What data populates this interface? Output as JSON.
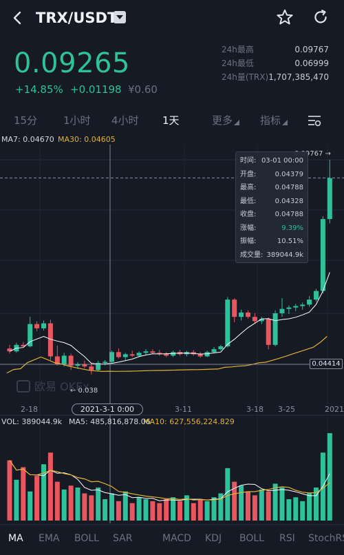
{
  "header": {
    "pair": "TRX/USDT"
  },
  "icons": {
    "back": "chevron-left-icon",
    "dropdown": "caret-down-icon",
    "favorite": "star-icon",
    "refresh": "refresh-icon",
    "settings": "chart-settings-icon"
  },
  "ticker": {
    "last_price": "0.09265",
    "change_pct": "+14.85%",
    "change_abs": "+0.01198",
    "fiat": "¥0.60",
    "high_label": "24h最高",
    "high_value": "0.09767",
    "low_label": "24h最低",
    "low_value": "0.06999",
    "volume_label": "24h量(TRX)",
    "volume_value": "1,707,385,470"
  },
  "timeframes": {
    "t15m": "15分",
    "t1h": "1小时",
    "t4h": "4小时",
    "t1d": "1天",
    "more": "更多",
    "indicators": "指标"
  },
  "ma_legend": {
    "ma7": "MA7: 0.04670",
    "ma30": "MA30: 0.04605"
  },
  "chart_labels": {
    "top_marker": "0.09767 →",
    "low_marker": "← 0.038",
    "right_price": "0.04414",
    "selected_date": "2021-3-1  0:00",
    "watermark": "欧易 OKEx",
    "x_ticks": [
      "2-18",
      "3-11",
      "3-18",
      "3-25",
      "2021"
    ]
  },
  "tooltip": {
    "rows": [
      {
        "label": "时间:",
        "value": "03-01 00:00"
      },
      {
        "label": "开盘:",
        "value": "0.04379"
      },
      {
        "label": "最高:",
        "value": "0.04788"
      },
      {
        "label": "最低:",
        "value": "0.04328"
      },
      {
        "label": "收盘:",
        "value": "0.04788"
      },
      {
        "label": "涨幅:",
        "value": "9.39%"
      },
      {
        "label": "振幅:",
        "value": "10.51%"
      },
      {
        "label": "成交量:",
        "value": "389044.9k"
      }
    ]
  },
  "vol_legend": {
    "vol": "VOL: 389044.9k",
    "ma5": "MA5: 485,816,878.06",
    "ma10": "MA10: 627,556,224.829"
  },
  "indicators": [
    "MA",
    "EMA",
    "BOLL",
    "SAR",
    "MACD",
    "KDJ",
    "BOLL",
    "RSI",
    "StochRS"
  ],
  "colors": {
    "up": "#2fc09c",
    "down": "#e8565f",
    "ma7": "#ffffff",
    "ma30": "#e2b230",
    "background": "#161a25"
  },
  "chart_data": {
    "type": "candlestick",
    "price_range": [
      0.032,
      0.1
    ],
    "candles": [
      {
        "o": 0.0452,
        "h": 0.0462,
        "l": 0.0438,
        "c": 0.0444
      },
      {
        "o": 0.0444,
        "h": 0.0468,
        "l": 0.044,
        "c": 0.0462
      },
      {
        "o": 0.0462,
        "h": 0.047,
        "l": 0.0454,
        "c": 0.0458
      },
      {
        "o": 0.0458,
        "h": 0.054,
        "l": 0.0455,
        "c": 0.052
      },
      {
        "o": 0.052,
        "h": 0.0528,
        "l": 0.05,
        "c": 0.0508
      },
      {
        "o": 0.0508,
        "h": 0.053,
        "l": 0.0502,
        "c": 0.0522
      },
      {
        "o": 0.0522,
        "h": 0.0532,
        "l": 0.042,
        "c": 0.043
      },
      {
        "o": 0.043,
        "h": 0.046,
        "l": 0.0405,
        "c": 0.0408
      },
      {
        "o": 0.0408,
        "h": 0.044,
        "l": 0.0402,
        "c": 0.0432
      },
      {
        "o": 0.0432,
        "h": 0.0438,
        "l": 0.0392,
        "c": 0.0404
      },
      {
        "o": 0.0404,
        "h": 0.0414,
        "l": 0.0395,
        "c": 0.0408
      },
      {
        "o": 0.0408,
        "h": 0.0418,
        "l": 0.0397,
        "c": 0.0402
      },
      {
        "o": 0.0402,
        "h": 0.041,
        "l": 0.038,
        "c": 0.0392
      },
      {
        "o": 0.0392,
        "h": 0.0418,
        "l": 0.0388,
        "c": 0.0412
      },
      {
        "o": 0.0412,
        "h": 0.042,
        "l": 0.0405,
        "c": 0.0415
      },
      {
        "o": 0.0415,
        "h": 0.0446,
        "l": 0.041,
        "c": 0.0442
      },
      {
        "o": 0.0442,
        "h": 0.0452,
        "l": 0.0424,
        "c": 0.0428
      },
      {
        "o": 0.0428,
        "h": 0.044,
        "l": 0.042,
        "c": 0.0436
      },
      {
        "o": 0.0436,
        "h": 0.0446,
        "l": 0.0428,
        "c": 0.0432
      },
      {
        "o": 0.0432,
        "h": 0.0444,
        "l": 0.0428,
        "c": 0.044
      },
      {
        "o": 0.044,
        "h": 0.045,
        "l": 0.0434,
        "c": 0.0444
      },
      {
        "o": 0.0444,
        "h": 0.045,
        "l": 0.0436,
        "c": 0.044
      },
      {
        "o": 0.044,
        "h": 0.0448,
        "l": 0.0432,
        "c": 0.0438
      },
      {
        "o": 0.0438,
        "h": 0.0442,
        "l": 0.0428,
        "c": 0.0432
      },
      {
        "o": 0.0432,
        "h": 0.0446,
        "l": 0.0428,
        "c": 0.0442
      },
      {
        "o": 0.0442,
        "h": 0.0448,
        "l": 0.0432,
        "c": 0.0436
      },
      {
        "o": 0.0436,
        "h": 0.0446,
        "l": 0.043,
        "c": 0.0442
      },
      {
        "o": 0.0442,
        "h": 0.0448,
        "l": 0.0432,
        "c": 0.0436
      },
      {
        "o": 0.0436,
        "h": 0.0442,
        "l": 0.0426,
        "c": 0.043
      },
      {
        "o": 0.043,
        "h": 0.0446,
        "l": 0.0428,
        "c": 0.0442
      },
      {
        "o": 0.0442,
        "h": 0.0456,
        "l": 0.0438,
        "c": 0.045
      },
      {
        "o": 0.045,
        "h": 0.0462,
        "l": 0.0446,
        "c": 0.0458
      },
      {
        "o": 0.0458,
        "h": 0.0595,
        "l": 0.0455,
        "c": 0.0588
      },
      {
        "o": 0.0588,
        "h": 0.0592,
        "l": 0.0525,
        "c": 0.054
      },
      {
        "o": 0.054,
        "h": 0.056,
        "l": 0.053,
        "c": 0.0552
      },
      {
        "o": 0.0552,
        "h": 0.0558,
        "l": 0.0535,
        "c": 0.054
      },
      {
        "o": 0.054,
        "h": 0.055,
        "l": 0.0522,
        "c": 0.0528
      },
      {
        "o": 0.0528,
        "h": 0.054,
        "l": 0.052,
        "c": 0.0534
      },
      {
        "o": 0.0534,
        "h": 0.0538,
        "l": 0.045,
        "c": 0.0462
      },
      {
        "o": 0.0462,
        "h": 0.0558,
        "l": 0.0458,
        "c": 0.055
      },
      {
        "o": 0.055,
        "h": 0.0592,
        "l": 0.054,
        "c": 0.0562
      },
      {
        "o": 0.0562,
        "h": 0.0572,
        "l": 0.0548,
        "c": 0.0566
      },
      {
        "o": 0.0566,
        "h": 0.0576,
        "l": 0.0556,
        "c": 0.057
      },
      {
        "o": 0.057,
        "h": 0.058,
        "l": 0.056,
        "c": 0.0574
      },
      {
        "o": 0.0574,
        "h": 0.0598,
        "l": 0.0568,
        "c": 0.0588
      },
      {
        "o": 0.0588,
        "h": 0.0618,
        "l": 0.0582,
        "c": 0.0612
      },
      {
        "o": 0.0612,
        "h": 0.082,
        "l": 0.0605,
        "c": 0.0812
      },
      {
        "o": 0.0812,
        "h": 0.0977,
        "l": 0.08,
        "c": 0.0926
      }
    ],
    "volume": [
      62,
      42,
      55,
      30,
      46,
      58,
      70,
      40,
      32,
      36,
      34,
      28,
      26,
      34,
      22,
      28,
      20,
      30,
      18,
      24,
      22,
      20,
      18,
      22,
      24,
      20,
      26,
      18,
      22,
      20,
      24,
      28,
      54,
      40,
      36,
      30,
      26,
      32,
      30,
      38,
      34,
      22,
      24,
      20,
      28,
      34,
      70,
      90
    ]
  }
}
